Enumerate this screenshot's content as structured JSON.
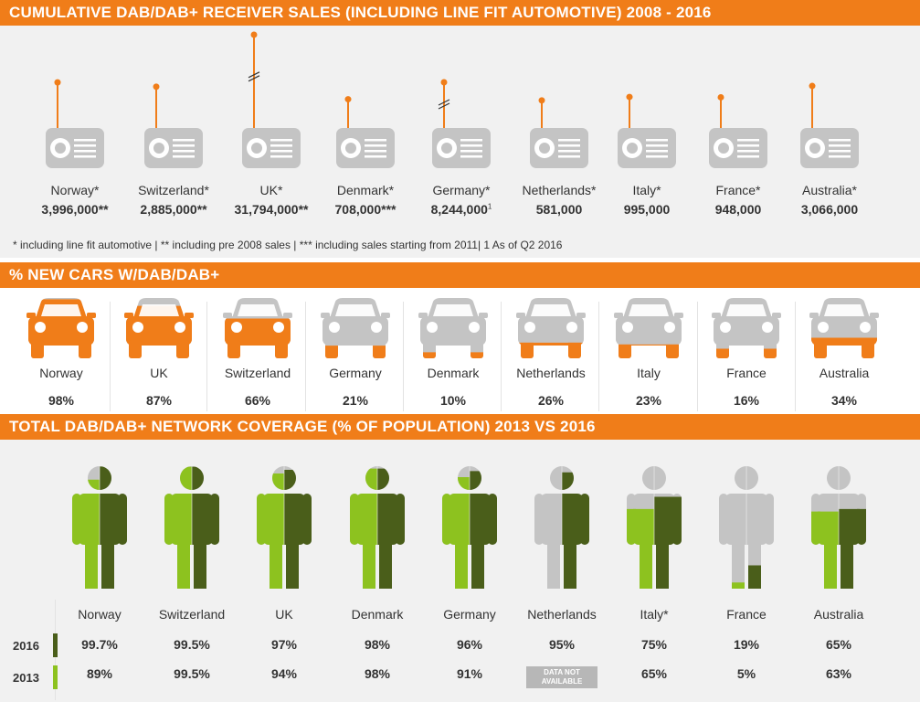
{
  "colors": {
    "orange": "#f07d19",
    "grey": "#c4c4c4",
    "light_green": "#8dc21f",
    "dark_green": "#4a5e1a",
    "panel": "#f1f1f1"
  },
  "sections": {
    "receivers_title": "CUMULATIVE DAB/DAB+ RECEIVER SALES (INCLUDING LINE FIT AUTOMOTIVE) 2008 - 2016",
    "cars_title": "% NEW CARS W/DAB/DAB+",
    "coverage_title": "TOTAL DAB/DAB+ NETWORK COVERAGE (% OF POPULATION) 2013 VS 2016"
  },
  "footnote": "* including line fit automotive | ** including pre 2008 sales | *** including sales starting from 2011| 1 As of Q2 2016",
  "coverage_not_available": [
    "DATA NOT",
    "AVAILABLE"
  ],
  "icons": {
    "receiver": "radio-icon",
    "car": "car-icon",
    "coverage": "person-icon"
  },
  "chart_data": [
    {
      "type": "bar",
      "title": "CUMULATIVE DAB/DAB+ RECEIVER SALES (INCLUDING LINE FIT AUTOMOTIVE) 2008 - 2016",
      "categories": [
        "Norway*",
        "Switzerland*",
        "UK*",
        "Denmark*",
        "Germany*",
        "Netherlands*",
        "Italy*",
        "France*",
        "Australia*"
      ],
      "labels": [
        "3,996,000**",
        "2,885,000**",
        "31,794,000**",
        "708,000***",
        "8,244,000",
        "581,000",
        "995,000",
        "948,000",
        "3,066,000"
      ],
      "label_superscripts": [
        "",
        "",
        "",
        "",
        "1",
        "",
        "",
        "",
        ""
      ],
      "values": [
        3996000,
        2885000,
        31794000,
        708000,
        8244000,
        581000,
        995000,
        948000,
        3066000
      ],
      "broken_axis": [
        "UK*",
        "Germany*"
      ]
    },
    {
      "type": "bar",
      "title": "% NEW CARS W/DAB/DAB+",
      "categories": [
        "Norway",
        "UK",
        "Switzerland",
        "Germany",
        "Denmark",
        "Netherlands",
        "Italy",
        "France",
        "Australia"
      ],
      "labels": [
        "98%",
        "87%",
        "66%",
        "21%",
        "10%",
        "26%",
        "23%",
        "16%",
        "34%"
      ],
      "values": [
        98,
        87,
        66,
        21,
        10,
        26,
        23,
        16,
        34
      ]
    },
    {
      "type": "bar",
      "title": "TOTAL DAB/DAB+ NETWORK COVERAGE (% OF POPULATION) 2013 VS 2016",
      "categories": [
        "Norway",
        "Switzerland",
        "UK",
        "Denmark",
        "Germany",
        "Netherlands",
        "Italy*",
        "France",
        "Australia"
      ],
      "series": [
        {
          "name": "2016",
          "labels": [
            "99.7%",
            "99.5%",
            "97%",
            "98%",
            "96%",
            "95%",
            "75%",
            "19%",
            "65%"
          ],
          "values": [
            99.7,
            99.5,
            97,
            98,
            96,
            95,
            75,
            19,
            65
          ]
        },
        {
          "name": "2013",
          "labels": [
            "89%",
            "99.5%",
            "94%",
            "98%",
            "91%",
            "",
            "65%",
            "5%",
            "63%"
          ],
          "values": [
            89,
            99.5,
            94,
            98,
            91,
            null,
            65,
            5,
            63
          ]
        }
      ]
    }
  ]
}
